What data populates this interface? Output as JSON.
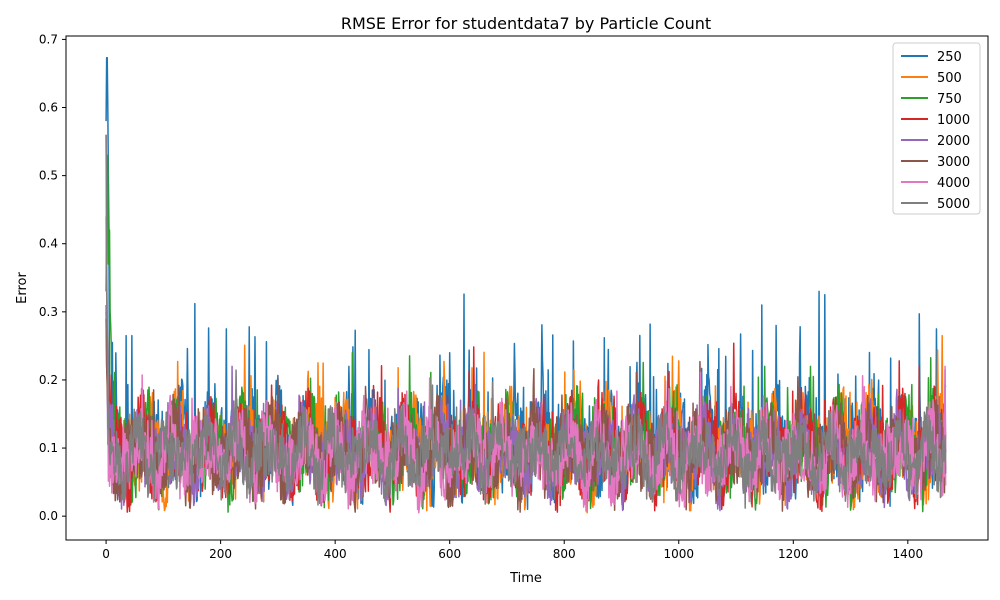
{
  "chart_data": {
    "type": "line",
    "title": "RMSE Error for studentdata7 by Particle Count",
    "xlabel": "Time",
    "ylabel": "Error",
    "xlim": [
      -70,
      1540
    ],
    "ylim": [
      -0.035,
      0.705
    ],
    "xticks": [
      0,
      200,
      400,
      600,
      800,
      1000,
      1200,
      1400
    ],
    "yticks": [
      0.0,
      0.1,
      0.2,
      0.3,
      0.4,
      0.5,
      0.6,
      0.7
    ],
    "ytick_labels": [
      "0.0",
      "0.1",
      "0.2",
      "0.3",
      "0.4",
      "0.5",
      "0.6",
      "0.7"
    ],
    "n_points": 1467,
    "grid": false,
    "legend_position": "top-right",
    "series": [
      {
        "name": "250",
        "color": "#1f77b4",
        "base": 0.105,
        "amp": 0.05,
        "noise": 0.055,
        "spike_rate": 0.045,
        "spike_height": 0.11,
        "min": 0.01,
        "seed": 11,
        "start_values": [
          0.58,
          0.673,
          0.673,
          0.6,
          0.5,
          0.42
        ],
        "peaks": [
          [
            35,
            0.265
          ],
          [
            45,
            0.265
          ],
          [
            155,
            0.312
          ],
          [
            210,
            0.275
          ],
          [
            250,
            0.278
          ],
          [
            280,
            0.256
          ],
          [
            435,
            0.273
          ],
          [
            600,
            0.24
          ],
          [
            625,
            0.326
          ],
          [
            780,
            0.266
          ],
          [
            870,
            0.262
          ],
          [
            950,
            0.282
          ],
          [
            1070,
            0.246
          ],
          [
            1145,
            0.31
          ],
          [
            1170,
            0.28
          ],
          [
            1245,
            0.33
          ],
          [
            1255,
            0.325
          ],
          [
            1370,
            0.232
          ],
          [
            1420,
            0.297
          ],
          [
            1450,
            0.275
          ]
        ]
      },
      {
        "name": "500",
        "color": "#ff7f0e",
        "base": 0.1,
        "amp": 0.05,
        "noise": 0.05,
        "spike_rate": 0.04,
        "spike_height": 0.09,
        "min": 0.008,
        "seed": 23,
        "start_values": [
          0.44,
          0.33,
          0.28,
          0.22
        ],
        "peaks": [
          [
            125,
            0.227
          ],
          [
            370,
            0.225
          ],
          [
            510,
            0.218
          ],
          [
            840,
            0.255
          ],
          [
            1000,
            0.228
          ],
          [
            1460,
            0.265
          ],
          [
            840,
            0.005
          ]
        ]
      },
      {
        "name": "750",
        "color": "#2ca02c",
        "base": 0.098,
        "amp": 0.05,
        "noise": 0.05,
        "spike_rate": 0.04,
        "spike_height": 0.09,
        "min": 0.006,
        "seed": 37,
        "start_values": [
          0.33,
          0.43,
          0.53,
          0.53,
          0.37,
          0.42,
          0.42,
          0.3,
          0.28,
          0.25
        ],
        "peaks": [
          [
            430,
            0.24
          ],
          [
            1150,
            0.22
          ],
          [
            1230,
            0.22
          ]
        ]
      },
      {
        "name": "1000",
        "color": "#d62728",
        "base": 0.095,
        "amp": 0.045,
        "noise": 0.05,
        "spike_rate": 0.035,
        "spike_height": 0.08,
        "min": 0.006,
        "seed": 41,
        "start_values": [
          0.3,
          0.26,
          0.24,
          0.2
        ],
        "peaks": [
          [
            1420,
            0.22
          ],
          [
            860,
            0.2
          ]
        ]
      },
      {
        "name": "2000",
        "color": "#9467bd",
        "base": 0.092,
        "amp": 0.045,
        "noise": 0.045,
        "spike_rate": 0.03,
        "spike_height": 0.07,
        "min": 0.006,
        "seed": 53,
        "start_values": [
          0.31,
          0.22,
          0.2
        ],
        "peaks": [
          [
            1465,
            0.215
          ]
        ]
      },
      {
        "name": "3000",
        "color": "#8c564b",
        "base": 0.092,
        "amp": 0.045,
        "noise": 0.045,
        "spike_rate": 0.03,
        "spike_height": 0.07,
        "min": 0.006,
        "seed": 67,
        "start_values": [
          0.29,
          0.22,
          0.19
        ],
        "peaks": []
      },
      {
        "name": "4000",
        "color": "#e377c2",
        "base": 0.09,
        "amp": 0.045,
        "noise": 0.045,
        "spike_rate": 0.03,
        "spike_height": 0.07,
        "min": 0.005,
        "seed": 79,
        "start_values": [
          0.56,
          0.4,
          0.27,
          0.2
        ],
        "peaks": [
          [
            1465,
            0.22
          ]
        ]
      },
      {
        "name": "5000",
        "color": "#7f7f7f",
        "base": 0.09,
        "amp": 0.04,
        "noise": 0.04,
        "spike_rate": 0.02,
        "spike_height": 0.06,
        "min": 0.01,
        "seed": 97,
        "start_values": [
          0.56,
          0.35,
          0.26,
          0.2
        ],
        "peaks": []
      }
    ]
  }
}
